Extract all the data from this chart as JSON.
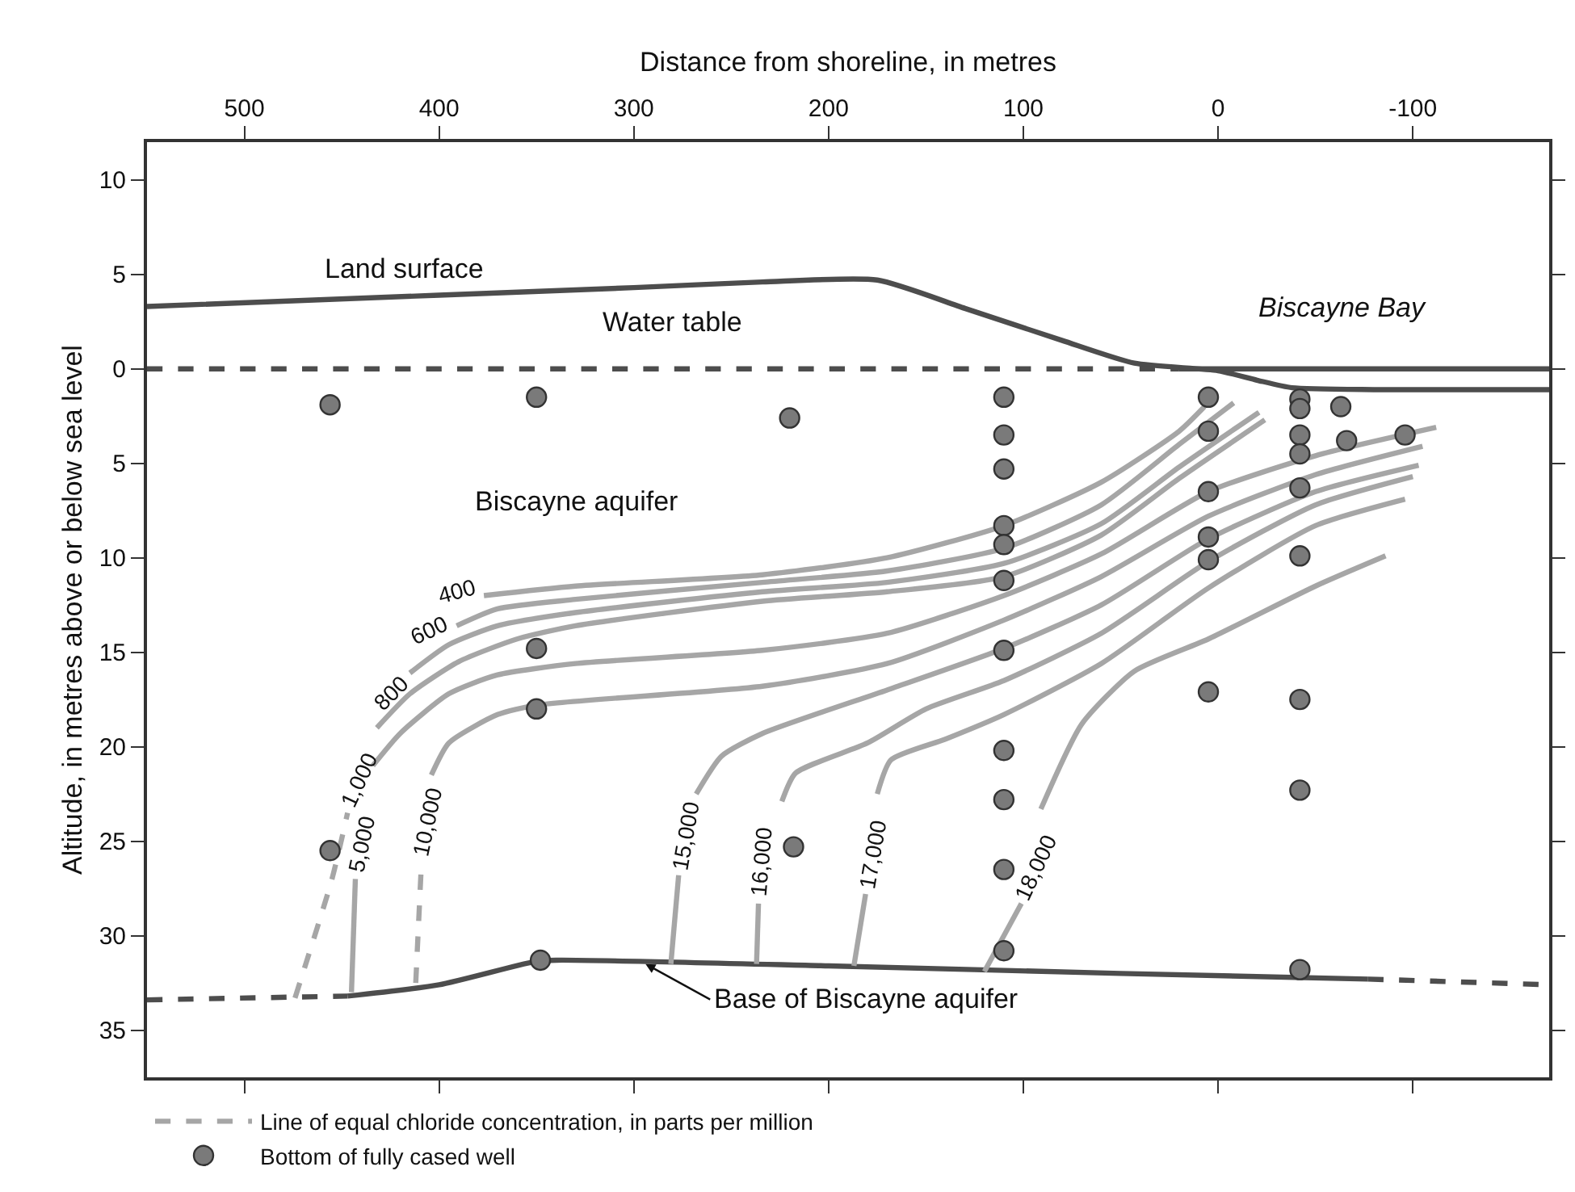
{
  "chart_data": {
    "type": "line",
    "xlabel": "Distance from shoreline, in metres",
    "ylabel": "Altitude, in metres above or below sea level",
    "xlim": [
      550,
      -170
    ],
    "xticks": [
      500,
      400,
      300,
      200,
      100,
      0,
      -100
    ],
    "ylim": [
      -37.5,
      12
    ],
    "yticks": [
      {
        "value": -35,
        "label": "35"
      },
      {
        "value": -30,
        "label": "30"
      },
      {
        "value": -25,
        "label": "25"
      },
      {
        "value": -20,
        "label": "20"
      },
      {
        "value": -15,
        "label": "15"
      },
      {
        "value": -10,
        "label": "10"
      },
      {
        "value": -5,
        "label": "5"
      },
      0,
      5,
      10
    ],
    "legend": "bottom left",
    "marker": "none",
    "series": [
      {
        "color": "#4d4d4d",
        "line_style": "solid",
        "x": [
          550,
          400,
          300,
          234,
          175,
          130,
          80,
          43,
          0,
          -20,
          -38,
          -80,
          -170
        ],
        "values": [
          3.3,
          3.9,
          4.3,
          4.6,
          4.7,
          3.2,
          1.5,
          0.3,
          -0.1,
          -0.6,
          -1.0,
          -1.1,
          -1.1
        ]
      },
      {
        "color": "#4d4d4d",
        "line_style": "dashed",
        "x": [
          550,
          20
        ],
        "values": [
          0,
          0
        ]
      },
      {
        "color": "#4d4d4d",
        "line_style": "solid",
        "x": [
          20,
          -170
        ],
        "values": [
          0,
          0
        ]
      },
      {
        "color": "#4d4d4d",
        "line_style": "dashed",
        "x": [
          550,
          447
        ],
        "values": [
          -33.4,
          -33.2
        ]
      },
      {
        "color": "#4d4d4d",
        "line_style": "solid",
        "x": [
          447,
          400,
          352,
          340,
          200,
          50,
          -77
        ],
        "values": [
          -33.2,
          -32.6,
          -31.4,
          -31.3,
          -31.6,
          -32.0,
          -32.3
        ]
      },
      {
        "color": "#4d4d4d",
        "line_style": "dashed",
        "x": [
          -77,
          -170
        ],
        "values": [
          -32.3,
          -32.6
        ]
      },
      {
        "color": "#a6a6a6",
        "line_style": "solid",
        "x": [
          377,
          330,
          234,
          170,
          110,
          60,
          20,
          7
        ],
        "values": [
          -12.0,
          -11.5,
          -10.9,
          -10.0,
          -8.3,
          -6.0,
          -3.3,
          -2.0
        ]
      },
      {
        "color": "#a6a6a6",
        "line_style": "solid",
        "x": [
          391,
          370,
          330,
          234,
          170,
          110,
          60,
          20,
          -8
        ],
        "values": [
          -13.6,
          -12.7,
          -12.2,
          -11.3,
          -10.7,
          -9.5,
          -7.2,
          -4.0,
          -1.8
        ]
      },
      {
        "color": "#a6a6a6",
        "line_style": "solid",
        "x": [
          415,
          395,
          370,
          330,
          234,
          170,
          110,
          60,
          20,
          -21
        ],
        "values": [
          -16.1,
          -14.6,
          -13.6,
          -12.9,
          -11.8,
          -11.3,
          -10.3,
          -8.2,
          -5.2,
          -2.3
        ]
      },
      {
        "color": "#a6a6a6",
        "line_style": "dashed",
        "x": [
          474,
          455,
          447
        ],
        "values": [
          -33.3,
          -27.0,
          -23.5
        ]
      },
      {
        "color": "#a6a6a6",
        "line_style": "solid",
        "x": [
          432,
          415,
          390,
          360,
          330,
          234,
          170,
          110,
          60,
          20,
          -24
        ],
        "values": [
          -19.0,
          -17.2,
          -15.5,
          -14.3,
          -13.6,
          -12.3,
          -11.8,
          -11.0,
          -8.8,
          -5.8,
          -2.7
        ]
      },
      {
        "color": "#a6a6a6",
        "line_style": "solid",
        "x": [
          445,
          443
        ],
        "values": [
          -33.0,
          -27.0
        ]
      },
      {
        "color": "#a6a6a6",
        "line_style": "solid",
        "x": [
          434,
          420,
          395,
          370,
          330,
          234,
          170,
          110,
          60,
          5,
          -50,
          -112
        ],
        "values": [
          -21.0,
          -19.3,
          -17.2,
          -16.2,
          -15.6,
          -14.9,
          -14.0,
          -12.0,
          -9.8,
          -6.5,
          -4.6,
          -3.1
        ]
      },
      {
        "name": "Line of equal chloride concentration, in parts per million",
        "color": "#a6a6a6",
        "line_style": "dashed",
        "x": [
          412,
          409
        ],
        "values": [
          -32.5,
          -26.0
        ]
      },
      {
        "color": "#a6a6a6",
        "line_style": "solid",
        "x": [
          404,
          395,
          370,
          350,
          234,
          170,
          110,
          60,
          5,
          -50,
          -105
        ],
        "values": [
          -21.5,
          -19.8,
          -18.3,
          -17.8,
          -16.8,
          -15.6,
          -13.3,
          -11.0,
          -7.8,
          -5.6,
          -4.1
        ]
      },
      {
        "color": "#a6a6a6",
        "line_style": "solid",
        "x": [
          281,
          277
        ],
        "values": [
          -31.5,
          -26.8
        ]
      },
      {
        "color": "#a6a6a6",
        "line_style": "solid",
        "x": [
          268,
          255,
          234,
          170,
          110,
          60,
          5,
          -50,
          -103
        ],
        "values": [
          -22.5,
          -20.5,
          -19.3,
          -17.0,
          -14.8,
          -12.5,
          -9.0,
          -6.5,
          -5.1
        ]
      },
      {
        "color": "#a6a6a6",
        "line_style": "solid",
        "x": [
          237,
          236
        ],
        "values": [
          -31.5,
          -28.3
        ]
      },
      {
        "color": "#a6a6a6",
        "line_style": "solid",
        "x": [
          224,
          217,
          180,
          150,
          110,
          60,
          5,
          -50,
          -100
        ],
        "values": [
          -22.9,
          -21.4,
          -19.8,
          -18.0,
          -16.5,
          -14.0,
          -10.2,
          -7.2,
          -5.7
        ]
      },
      {
        "color": "#a6a6a6",
        "line_style": "solid",
        "x": [
          187,
          181
        ],
        "values": [
          -31.6,
          -27.8
        ]
      },
      {
        "color": "#a6a6a6",
        "line_style": "solid",
        "x": [
          175,
          168,
          140,
          110,
          60,
          5,
          -50,
          -96
        ],
        "values": [
          -22.5,
          -20.7,
          -19.6,
          -18.3,
          -15.6,
          -11.6,
          -8.3,
          -6.9
        ]
      },
      {
        "color": "#a6a6a6",
        "line_style": "solid",
        "x": [
          120,
          101
        ],
        "values": [
          -31.9,
          -28.3
        ]
      },
      {
        "color": "#a6a6a6",
        "line_style": "solid",
        "x": [
          91,
          70,
          43,
          5,
          -50,
          -86
        ],
        "values": [
          -23.3,
          -18.8,
          -16.0,
          -14.3,
          -11.5,
          -9.9
        ]
      },
      {
        "name": "Bottom of fully cased well",
        "type": "scatter",
        "marker": "circle",
        "color": "#7a7a7a",
        "x": [
          456,
          350,
          350,
          350,
          456,
          348,
          218,
          220,
          110,
          110,
          110,
          110,
          110,
          110,
          110,
          110,
          110,
          110,
          110,
          5,
          5,
          5,
          5,
          5,
          5,
          -42,
          -42,
          -42,
          -42,
          -42,
          -42,
          -42,
          -42,
          -42,
          -63,
          -66,
          -96
        ],
        "values": [
          -1.9,
          -1.5,
          -14.8,
          -18.0,
          -25.5,
          -31.3,
          -25.3,
          -2.6,
          -1.5,
          -3.5,
          -5.3,
          -8.3,
          -9.3,
          -11.2,
          -14.9,
          -20.2,
          -22.8,
          -26.5,
          -30.8,
          -1.5,
          -3.3,
          -6.5,
          -8.9,
          -10.1,
          -17.1,
          -1.6,
          -2.1,
          -3.5,
          -4.5,
          -6.3,
          -9.9,
          -17.5,
          -22.3,
          -31.8,
          -2.0,
          -3.8,
          -3.5
        ]
      }
    ],
    "annotations": [
      "Land surface",
      "Water table",
      "Biscayne Bay",
      "Biscayne aquifer",
      {
        "text": "Base of Biscayne aquifer",
        "x": 294,
        "y": -31.5
      },
      {
        "text": "400",
        "x": 377,
        "y": -12.0
      },
      {
        "text": "600",
        "x": 391,
        "y": -13.6
      },
      {
        "text": "800",
        "x": 415,
        "y": -16.1
      },
      {
        "text": "1,000",
        "x": 447,
        "y": -23.5
      },
      {
        "text": "5,000",
        "x": 443,
        "y": -27.0
      },
      {
        "text": "10,000",
        "x": 409,
        "y": -26.0
      },
      {
        "text": "15,000",
        "x": 277,
        "y": -26.8
      },
      {
        "text": "16,000",
        "x": 236,
        "y": -28.3
      },
      {
        "text": "17,000",
        "x": 181,
        "y": -27.8
      },
      {
        "text": "18,000",
        "x": 101,
        "y": -28.3
      }
    ]
  }
}
